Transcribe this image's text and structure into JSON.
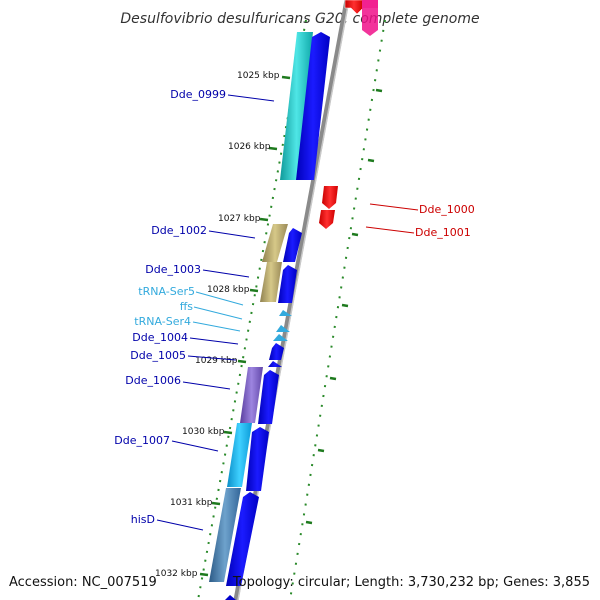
{
  "header": {
    "title": "Desulfovibrio desulfuricans G20, complete genome"
  },
  "footer": {
    "accession": "Accession: NC_007519",
    "topology": "Topology: circular; Length: 3,730,232 bp; Genes: 3,855"
  },
  "scale": {
    "ticks": [
      "1025 kbp",
      "1026 kbp",
      "1027 kbp",
      "1028 kbp",
      "1029 kbp",
      "1030 kbp",
      "1031 kbp",
      "1032 kbp"
    ]
  },
  "colors": {
    "plus_strand_label": "#0000aa",
    "minus_strand_label": "#cc0000",
    "rna_label": "#33aadd",
    "tick": "#227722",
    "backbone": "#999999"
  },
  "genes": {
    "dde_0999": "Dde_0999",
    "dde_1000": "Dde_1000",
    "dde_1001": "Dde_1001",
    "dde_1002": "Dde_1002",
    "dde_1003": "Dde_1003",
    "trna_ser5": "tRNA-Ser5",
    "ffs": "ffs",
    "trna_ser4": "tRNA-Ser4",
    "dde_1004": "Dde_1004",
    "dde_1005": "Dde_1005",
    "dde_1006": "Dde_1006",
    "dde_1007": "Dde_1007",
    "hisd": "hisD"
  }
}
